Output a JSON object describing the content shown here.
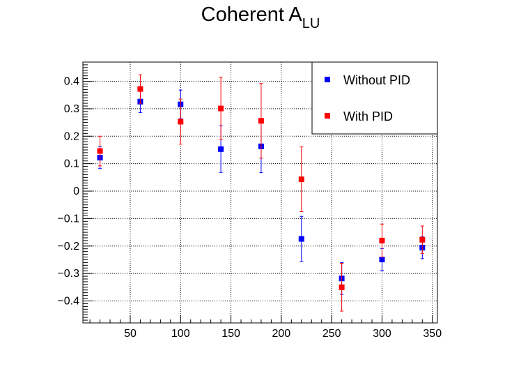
{
  "chart_data": {
    "type": "scatter",
    "title_main": "Coherent A",
    "title_sub": "LU",
    "xlabel": "",
    "ylabel": "",
    "xlim": [
      3,
      355
    ],
    "ylim": [
      -0.48,
      0.47
    ],
    "x_ticks": [
      50,
      100,
      150,
      200,
      250,
      300,
      350
    ],
    "y_ticks": [
      -0.4,
      -0.3,
      -0.2,
      -0.1,
      0,
      0.1,
      0.2,
      0.3,
      0.4
    ],
    "x_tick_labels": [
      "50",
      "100",
      "150",
      "200",
      "250",
      "300",
      "350"
    ],
    "y_tick_labels": [
      "−0.4",
      "−0.3",
      "−0.2",
      "−0.1",
      "0",
      "0.1",
      "0.2",
      "0.3",
      "0.4"
    ],
    "grid": true,
    "legend_position": "top-right",
    "series": [
      {
        "name": "Without PID",
        "color": "#0000ff",
        "x": [
          20,
          60,
          100,
          140,
          180,
          220,
          260,
          300,
          340
        ],
        "y": [
          0.122,
          0.326,
          0.316,
          0.153,
          0.163,
          -0.174,
          -0.318,
          -0.249,
          -0.206
        ],
        "err": [
          0.04,
          0.04,
          0.052,
          0.085,
          0.096,
          0.082,
          0.058,
          0.04,
          0.04
        ]
      },
      {
        "name": "With PID",
        "color": "#ff0000",
        "x": [
          20,
          60,
          100,
          140,
          180,
          220,
          260,
          300,
          340
        ],
        "y": [
          0.146,
          0.372,
          0.253,
          0.301,
          0.256,
          0.043,
          -0.35,
          -0.18,
          -0.177
        ],
        "err": [
          0.054,
          0.052,
          0.082,
          0.113,
          0.136,
          0.118,
          0.087,
          0.06,
          0.05
        ]
      }
    ]
  }
}
